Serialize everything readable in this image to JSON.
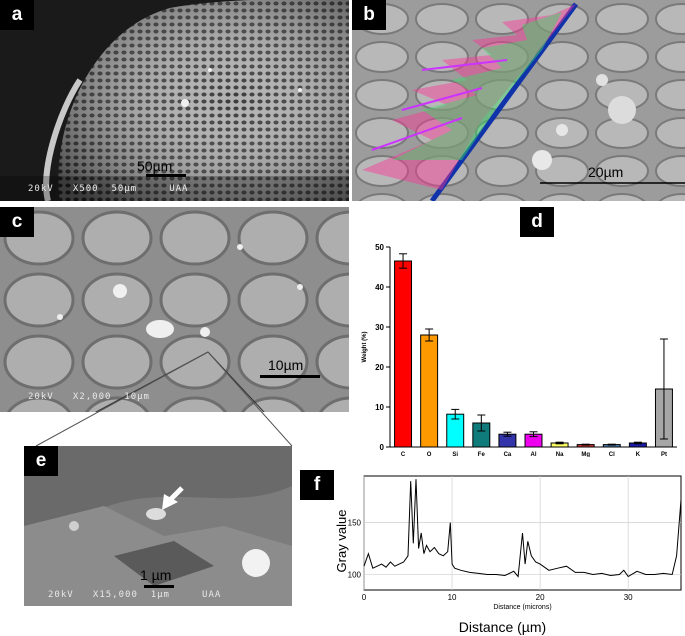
{
  "panels": {
    "a": {
      "label": "a",
      "scale": "50µm",
      "footer": "20kV   X500  50µm     UAA"
    },
    "b": {
      "label": "b",
      "scale": "20µm"
    },
    "c": {
      "label": "c",
      "scale": "10µm",
      "footer": "20kV   X2,000  10µm"
    },
    "d": {
      "label": "d"
    },
    "e": {
      "label": "e",
      "scale": "1 µm",
      "footer": "20kV   X15,000  1µm     UAA"
    },
    "f": {
      "label": "f"
    }
  },
  "colors": {
    "C": "#ff0000",
    "O": "#ff9900",
    "Si": "#00ffff",
    "Fe": "#0f7b7b",
    "Ca": "#3333aa",
    "Al": "#ee00ee",
    "Na": "#ffff66",
    "Mg": "#cc3333",
    "Cl": "#4d7fb0",
    "K": "#1a1aaa",
    "Pt": "#a6a6a6"
  },
  "chart_data": [
    {
      "type": "bar",
      "categories": [
        "C",
        "O",
        "Si",
        "Fe",
        "Ca",
        "Al",
        "Na",
        "Mg",
        "Cl",
        "K",
        "Pt"
      ],
      "values": [
        46.5,
        28,
        8.2,
        6,
        3.2,
        3.2,
        1,
        0.6,
        0.6,
        1,
        14.5
      ],
      "errors": [
        1.8,
        1.5,
        1.2,
        2,
        0.5,
        0.6,
        0.2,
        0.1,
        0.1,
        0.2,
        12.5
      ],
      "ylabel": "Weight (%)",
      "ylim": [
        0,
        50
      ],
      "yticks": [
        0,
        10,
        20,
        30,
        40,
        50
      ]
    },
    {
      "type": "line",
      "xlabel": "Distance (microns)",
      "ylabel": "Gray value",
      "caption": "Distance (µm)",
      "xlim": [
        0,
        36
      ],
      "ylim": [
        85,
        195
      ],
      "xticks": [
        0,
        10,
        20,
        30
      ],
      "yticks": [
        100,
        150
      ],
      "grid": true,
      "x": [
        0,
        0.5,
        1,
        1.5,
        2,
        2.5,
        3,
        3.5,
        4,
        4.5,
        5,
        5.3,
        5.6,
        5.9,
        6.2,
        6.5,
        6.8,
        7.1,
        7.5,
        8,
        8.5,
        9,
        9.5,
        9.8,
        10,
        10.3,
        11,
        12,
        13,
        14,
        15,
        16,
        17,
        17.5,
        18,
        18.3,
        18.6,
        19,
        19.5,
        20,
        21,
        22,
        23,
        24,
        25,
        26,
        27,
        28,
        29,
        29.5,
        30,
        31,
        32,
        33,
        34,
        35,
        35.5,
        36
      ],
      "y": [
        108,
        120,
        106,
        108,
        110,
        107,
        112,
        108,
        110,
        112,
        118,
        190,
        130,
        192,
        125,
        140,
        120,
        128,
        122,
        126,
        120,
        118,
        122,
        150,
        110,
        106,
        104,
        102,
        101,
        100,
        100,
        99,
        103,
        98,
        140,
        110,
        132,
        118,
        112,
        110,
        104,
        106,
        108,
        102,
        102,
        100,
        101,
        99,
        100,
        104,
        98,
        103,
        100,
        100,
        101,
        100,
        118,
        172
      ]
    }
  ]
}
